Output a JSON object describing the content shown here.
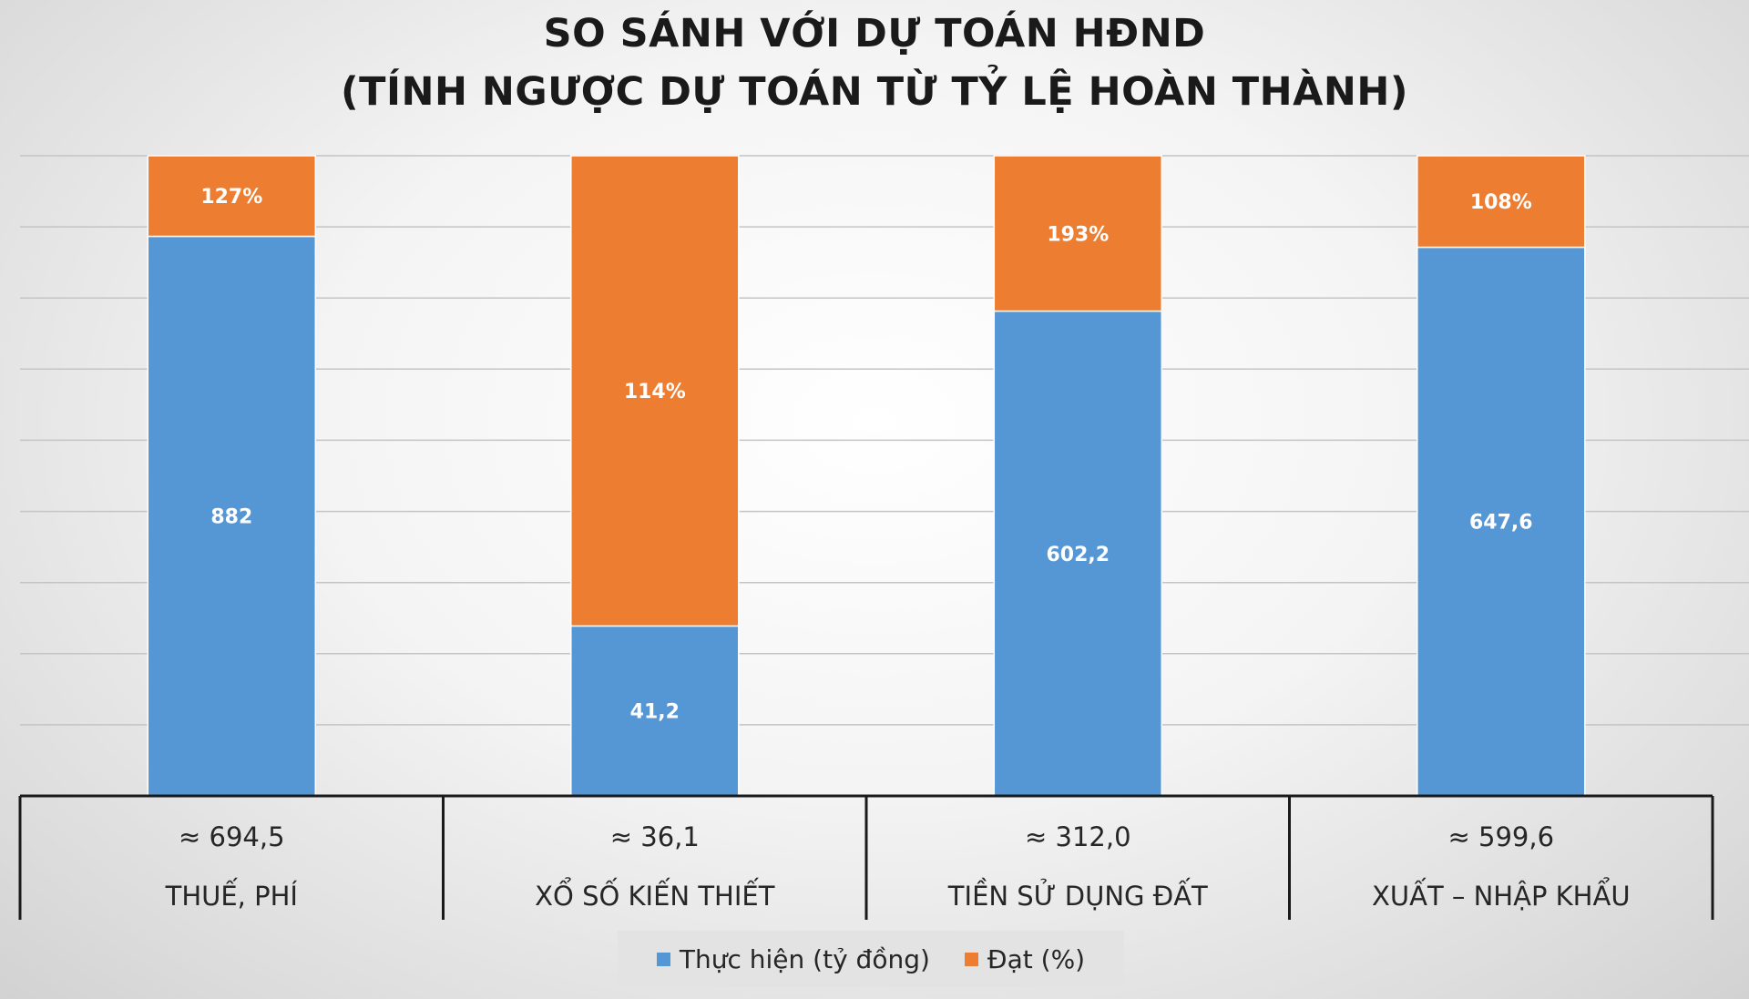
{
  "title": {
    "line1": "SO SÁNH VỚI DỰ TOÁN HĐND",
    "line2": "(TÍNH NGƯỢC DỰ TOÁN TỪ TỶ LỆ HOÀN THÀNH)"
  },
  "colors": {
    "thuc_hien": "#5596d5",
    "dat": "#ed7d31",
    "grid": "#c4c4c4",
    "table_border": "#1a1a1a"
  },
  "chart_data": {
    "type": "bar",
    "stacked": "100%",
    "grid": true,
    "legend_position": "bottom",
    "categories": [
      "THUẾ, PHÍ",
      "XỔ SỐ KIẾN THIẾT",
      "TIỀN SỬ DỤNG ĐẤT",
      "XUẤT – NHẬP KHẨU"
    ],
    "estimates": [
      "≈ 694,5",
      "≈ 36,1",
      "≈ 312,0",
      "≈ 599,6"
    ],
    "series": [
      {
        "name": "Thực hiện (tỷ đồng)",
        "values": [
          882,
          41.2,
          602.2,
          647.6
        ],
        "labels": [
          "882",
          "41,2",
          "602,2",
          "647,6"
        ]
      },
      {
        "name": "Đạt (%)",
        "values": [
          127,
          114,
          193,
          108
        ],
        "labels": [
          "127%",
          "114%",
          "193%",
          "108%"
        ]
      }
    ]
  }
}
